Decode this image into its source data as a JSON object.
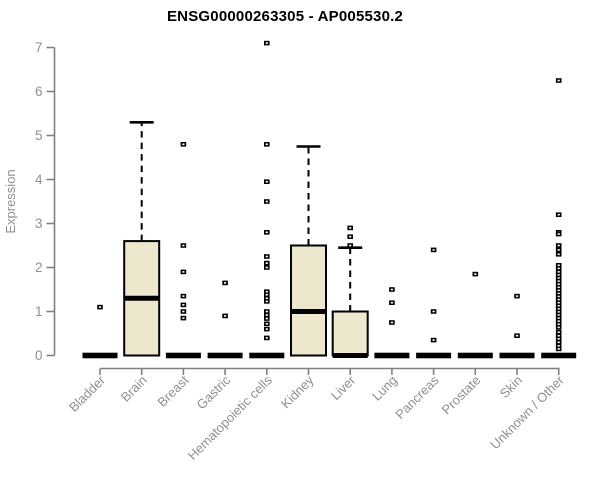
{
  "chart_data": {
    "type": "boxplot",
    "title": "ENSG00000263305 - AP005530.2",
    "ylabel": "Expression",
    "yticks": [
      0,
      1,
      2,
      3,
      4,
      5,
      6,
      7
    ],
    "ylim": [
      0,
      7.3
    ],
    "grid": false,
    "legend": "none",
    "categories": [
      "Bladder",
      "Brain",
      "Breast",
      "Gastric",
      "Hematopoietic cells",
      "Kidney",
      "Liver",
      "Lung",
      "Pancreas",
      "Prostate",
      "Skin",
      "Unknown / Other"
    ],
    "boxes": [
      {
        "category": "Bladder",
        "q1": 0,
        "median": 0,
        "q3": 0,
        "whisker_low": 0,
        "whisker_high": 0,
        "outliers": [
          1.1
        ]
      },
      {
        "category": "Brain",
        "q1": 0,
        "median": 1.3,
        "q3": 2.6,
        "whisker_low": 0,
        "whisker_high": 5.3,
        "outliers": []
      },
      {
        "category": "Breast",
        "q1": 0,
        "median": 0,
        "q3": 0,
        "whisker_low": 0,
        "whisker_high": 0,
        "outliers": [
          4.8,
          2.5,
          1.9,
          1.35,
          1.15,
          1.0,
          0.85
        ]
      },
      {
        "category": "Gastric",
        "q1": 0,
        "median": 0,
        "q3": 0,
        "whisker_low": 0,
        "whisker_high": 0,
        "outliers": [
          1.65,
          0.9
        ]
      },
      {
        "category": "Hematopoietic cells",
        "q1": 0,
        "median": 0,
        "q3": 0,
        "whisker_low": 0,
        "whisker_high": 0,
        "outliers": [
          7.1,
          4.8,
          3.95,
          3.5,
          2.8,
          2.25,
          2.1,
          2.0,
          1.45,
          1.38,
          1.3,
          1.23,
          1.0,
          0.92,
          0.84,
          0.72,
          0.6,
          0.4
        ]
      },
      {
        "category": "Kidney",
        "q1": 0,
        "median": 1.0,
        "q3": 2.5,
        "whisker_low": 0,
        "whisker_high": 4.75,
        "outliers": []
      },
      {
        "category": "Liver",
        "q1": 0,
        "median": 0,
        "q3": 1.0,
        "whisker_low": 0,
        "whisker_high": 2.45,
        "outliers": [
          2.9,
          2.7,
          2.5
        ]
      },
      {
        "category": "Lung",
        "q1": 0,
        "median": 0,
        "q3": 0,
        "whisker_low": 0,
        "whisker_high": 0,
        "outliers": [
          1.5,
          1.2,
          0.75
        ]
      },
      {
        "category": "Pancreas",
        "q1": 0,
        "median": 0,
        "q3": 0,
        "whisker_low": 0,
        "whisker_high": 0,
        "outliers": [
          2.4,
          1.0,
          0.35
        ]
      },
      {
        "category": "Prostate",
        "q1": 0,
        "median": 0,
        "q3": 0,
        "whisker_low": 0,
        "whisker_high": 0,
        "outliers": [
          1.85
        ]
      },
      {
        "category": "Skin",
        "q1": 0,
        "median": 0,
        "q3": 0,
        "whisker_low": 0,
        "whisker_high": 0,
        "outliers": [
          1.35,
          0.45
        ]
      },
      {
        "category": "Unknown / Other",
        "q1": 0,
        "median": 0,
        "q3": 0,
        "whisker_low": 0,
        "whisker_high": 0,
        "outliers": [
          6.25,
          3.2,
          2.8,
          2.76,
          2.5,
          2.4,
          2.3,
          2.05,
          1.98,
          1.9,
          1.83,
          1.76,
          1.69,
          1.62,
          1.55,
          1.48,
          1.41,
          1.34,
          1.27,
          1.2,
          1.13,
          1.06,
          0.99,
          0.92,
          0.85,
          0.78,
          0.71,
          0.64,
          0.53,
          0.45,
          0.38,
          0.3,
          0.22,
          0.15
        ]
      }
    ],
    "colors": {
      "box_fill": "#ede8cd",
      "box_stroke": "#000000",
      "median": "#000000",
      "whisker": "#000000",
      "outlier": "#000000",
      "axis_line": "#808080",
      "axis_text": "#8f8f8f",
      "title_text": "#000000",
      "background": "#ffffff"
    }
  }
}
